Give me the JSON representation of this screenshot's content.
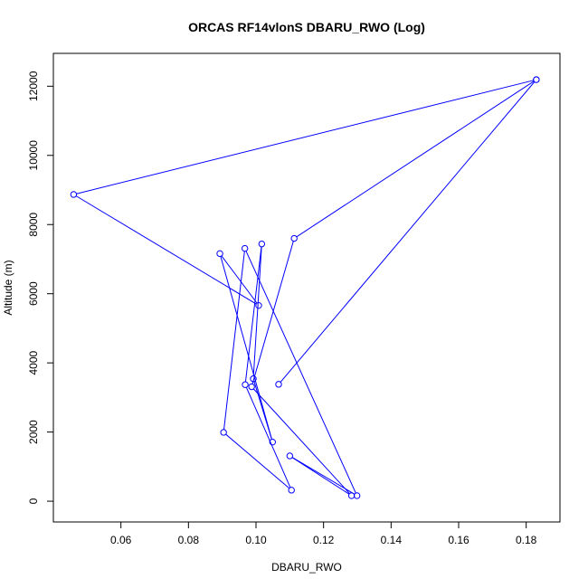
{
  "chart_data": {
    "type": "line",
    "title": "ORCAS RF14vlonS DBARU_RWO (Log)",
    "xlabel": "DBARU_RWO",
    "ylabel": "Altitude (m)",
    "xlim": [
      0.04,
      0.19
    ],
    "ylim": [
      -600,
      12950
    ],
    "x_ticks": [
      0.06,
      0.08,
      0.1,
      0.12,
      0.14,
      0.16,
      0.18
    ],
    "x_tick_labels": [
      "0.06",
      "0.08",
      "0.10",
      "0.12",
      "0.14",
      "0.16",
      "0.18"
    ],
    "y_ticks": [
      0,
      2000,
      4000,
      6000,
      8000,
      10000,
      12000
    ],
    "y_tick_labels": [
      "0",
      "2000",
      "4000",
      "6000",
      "8000",
      "10000",
      "12000"
    ],
    "grid": false,
    "line_color": "#0000ff",
    "series": [
      {
        "points": [
          {
            "x": 0.183,
            "y": 12190
          },
          {
            "x": 0.046,
            "y": 8870
          },
          {
            "x": 0.1008,
            "y": 5660
          },
          {
            "x": 0.0893,
            "y": 7160
          },
          {
            "x": 0.1049,
            "y": 1710
          },
          {
            "x": 0.0992,
            "y": 3540
          },
          {
            "x": 0.1017,
            "y": 7440
          },
          {
            "x": 0.0968,
            "y": 3370
          },
          {
            "x": 0.1105,
            "y": 320
          },
          {
            "x": 0.0904,
            "y": 1990
          },
          {
            "x": 0.0967,
            "y": 7310
          },
          {
            "x": 0.1299,
            "y": 160
          },
          {
            "x": 0.11,
            "y": 1310
          },
          {
            "x": 0.1283,
            "y": 160
          },
          {
            "x": 0.0987,
            "y": 3310
          },
          {
            "x": 0.1113,
            "y": 7600
          },
          {
            "x": 0.183,
            "y": 12190
          },
          {
            "x": 0.1067,
            "y": 3380
          }
        ]
      }
    ]
  }
}
